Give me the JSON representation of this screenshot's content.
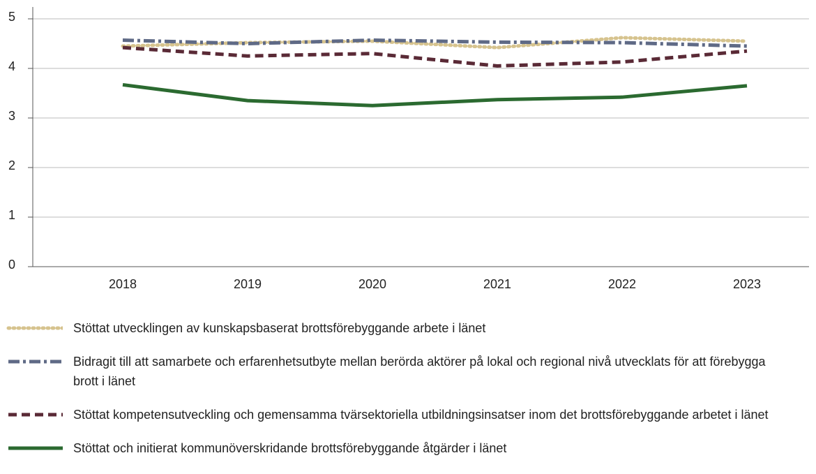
{
  "chart_data": {
    "type": "line",
    "categories": [
      "2018",
      "2019",
      "2020",
      "2021",
      "2022",
      "2023"
    ],
    "series": [
      {
        "name": "Stöttat utvecklingen av kunskapsbaserat brottsförebyggande arbete i länet",
        "color": "#d6c38e",
        "line_style": "dotted",
        "values": [
          4.45,
          4.52,
          4.55,
          4.42,
          4.62,
          4.55
        ]
      },
      {
        "name": "Bidragit till att samarbete och erfarenhetsutbyte mellan berörda aktörer på lokal och regional nivå utvecklats för att förebygga brott i länet",
        "color": "#5f6a86",
        "line_style": "dashdot",
        "values": [
          4.57,
          4.5,
          4.57,
          4.53,
          4.52,
          4.45
        ]
      },
      {
        "name": "Stöttat kompetensutveckling och gemensamma tvärsektoriella utbildningsinsatser inom det brottsförebyggande arbetet i länet",
        "color": "#5a2a36",
        "line_style": "dashed",
        "values": [
          4.42,
          4.25,
          4.3,
          4.05,
          4.13,
          4.35
        ]
      },
      {
        "name": "Stöttat och initierat kommunöverskridande brottsförebyggande åtgärder i länet",
        "color": "#2b6a30",
        "line_style": "solid",
        "values": [
          3.67,
          3.35,
          3.25,
          3.37,
          3.42,
          3.65
        ]
      }
    ],
    "ylim": [
      0,
      5
    ],
    "yticks": [
      0,
      1,
      2,
      3,
      4,
      5
    ],
    "grid": true,
    "legend": "bottom"
  }
}
